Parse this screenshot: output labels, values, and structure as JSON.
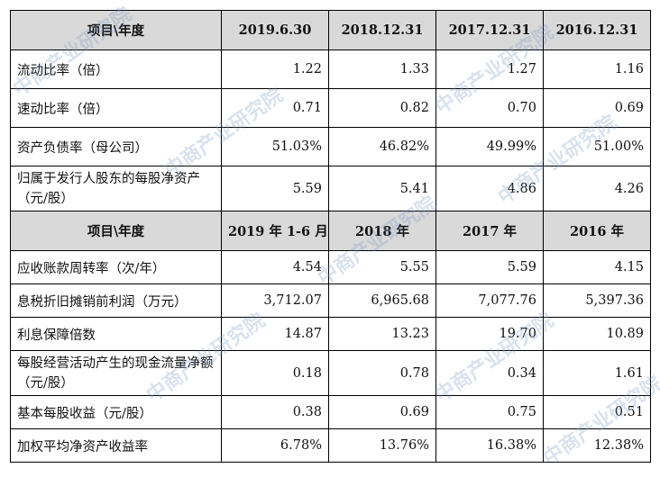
{
  "header1": [
    "项目\\年度",
    "2019.6.30",
    "2018.12.31",
    "2017.12.31",
    "2016.12.31"
  ],
  "section1": [
    {
      "label": "流动比率（倍）",
      "values": [
        "1.22",
        "1.33",
        "1.27",
        "1.16"
      ]
    },
    {
      "label": "速动比率（倍）",
      "values": [
        "0.71",
        "0.82",
        "0.70",
        "0.69"
      ]
    },
    {
      "label": "资产负债率（母公司）",
      "values": [
        "51.03%",
        "46.82%",
        "49.99%",
        "51.00%"
      ]
    },
    {
      "label": "归属于发行人股东的每股净资产（元/股）",
      "values": [
        "5.59",
        "5.41",
        "4.86",
        "4.26"
      ]
    }
  ],
  "header2": [
    "项目\\年度",
    "2019 年 1-6 月",
    "2018 年",
    "2017 年",
    "2016 年"
  ],
  "section2": [
    {
      "label": "应收账款周转率（次/年）",
      "values": [
        "4.54",
        "5.55",
        "5.59",
        "4.15"
      ]
    },
    {
      "label": "息税折旧摊销前利润（万元）",
      "values": [
        "3,712.07",
        "6,965.68",
        "7,077.76",
        "5,397.36"
      ]
    },
    {
      "label": "利息保障倍数",
      "values": [
        "14.87",
        "13.23",
        "19.70",
        "10.89"
      ]
    },
    {
      "label": "每股经营活动产生的现金流量净额（元/股）",
      "values": [
        "0.18",
        "0.78",
        "0.34",
        "1.61"
      ]
    },
    {
      "label": "基本每股收益（元/股）",
      "values": [
        "0.38",
        "0.69",
        "0.75",
        "0.51"
      ]
    },
    {
      "label": "加权平均净资产收益率",
      "values": [
        "6.78%",
        "13.76%",
        "16.38%",
        "12.38%"
      ]
    }
  ],
  "watermark": "中商产业研究院"
}
